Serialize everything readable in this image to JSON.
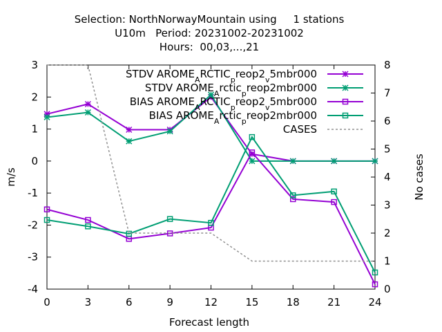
{
  "chart_data": {
    "type": "line",
    "title_lines": [
      "Selection: NorthNorwayMountain using     1 stations",
      "U10m   Period: 20231002-20231002",
      "Hours:  00,03,...,21"
    ],
    "xlabel": "Forecast length",
    "ylabel": "m/s",
    "y2label": "No cases",
    "x": [
      0,
      3,
      6,
      9,
      12,
      15,
      18,
      21,
      24
    ],
    "xlim": [
      0,
      24
    ],
    "ylim": [
      -4,
      3
    ],
    "y2lim": [
      0,
      8
    ],
    "xticks": [
      0,
      3,
      6,
      9,
      12,
      15,
      18,
      21,
      24
    ],
    "yticks": [
      -4,
      -3,
      -2,
      -1,
      0,
      1,
      2,
      3
    ],
    "y2ticks": [
      0,
      1,
      2,
      3,
      4,
      5,
      6,
      7,
      8
    ],
    "legend_position": "top-right",
    "series": [
      {
        "key": "stdv-arctic",
        "legend_parts": [
          [
            "STDV AROME",
            0
          ],
          [
            "A",
            1
          ],
          [
            "RCTIC",
            0
          ],
          [
            "p",
            1
          ],
          [
            "reop2",
            0
          ],
          [
            "v",
            1
          ],
          [
            "5mbr000",
            0
          ]
        ],
        "color": "#9400d3",
        "marker": "star",
        "axis": "y",
        "values": [
          1.47,
          1.78,
          0.98,
          0.98,
          2.0,
          0.22,
          0.0,
          0.0,
          0.0
        ]
      },
      {
        "key": "stdv-arctic-lower",
        "legend_parts": [
          [
            "STDV AROME",
            0
          ],
          [
            "A",
            1
          ],
          [
            "rctic",
            0
          ],
          [
            "p",
            1
          ],
          [
            "reop2mbr000",
            0
          ]
        ],
        "color": "#009e73",
        "marker": "star",
        "axis": "y",
        "values": [
          1.37,
          1.52,
          0.62,
          0.93,
          2.07,
          0.0,
          0.0,
          0.0,
          0.0
        ]
      },
      {
        "key": "bias-arctic",
        "legend_parts": [
          [
            "BIAS AROME",
            0
          ],
          [
            "A",
            1
          ],
          [
            "RCTIC",
            0
          ],
          [
            "p",
            1
          ],
          [
            "reop2",
            0
          ],
          [
            "v",
            1
          ],
          [
            "5mbr000",
            0
          ]
        ],
        "color": "#9400d3",
        "marker": "square",
        "axis": "y",
        "values": [
          -1.51,
          -1.84,
          -2.43,
          -2.26,
          -2.08,
          0.27,
          -1.19,
          -1.28,
          -3.85
        ]
      },
      {
        "key": "bias-arctic-lower",
        "legend_parts": [
          [
            "BIAS AROME",
            0
          ],
          [
            "A",
            1
          ],
          [
            "rctic",
            0
          ],
          [
            "p",
            1
          ],
          [
            "reop2mbr000",
            0
          ]
        ],
        "color": "#009e73",
        "marker": "square",
        "axis": "y",
        "values": [
          -1.84,
          -2.04,
          -2.27,
          -1.81,
          -1.93,
          0.75,
          -1.07,
          -0.95,
          -3.48
        ]
      },
      {
        "key": "cases",
        "legend_parts": [
          [
            "CASES",
            0
          ]
        ],
        "color": "#909090",
        "marker": "none",
        "dashed": true,
        "axis": "y2",
        "values": [
          8,
          8,
          2,
          2,
          2,
          1,
          1,
          1,
          1
        ]
      }
    ]
  }
}
